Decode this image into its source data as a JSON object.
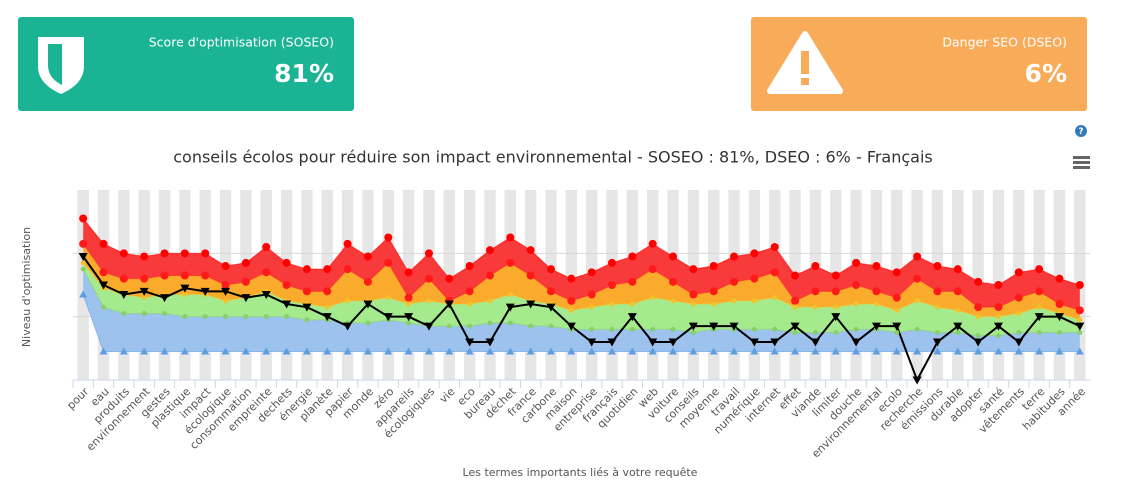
{
  "cards": [
    {
      "title": "Score d'optimisation (SOSEO)",
      "value": "81%"
    },
    {
      "title": "Danger SEO (DSEO)",
      "value": "6%"
    }
  ],
  "chart_data": {
    "type": "area",
    "title": "conseils écolos pour réduire son impact environnemental - SOSEO : 81%, DSEO : 6% - Français",
    "y_label": "Niveau d'optimisation",
    "x_label": "Les termes importants liés à votre requête",
    "categories": [
      "pour",
      "eau",
      "produits",
      "environnement",
      "gestes",
      "plastique",
      "impact",
      "écologique",
      "consommation",
      "empreinte",
      "dechets",
      "énergie",
      "planète",
      "papier",
      "monde",
      "zéro",
      "appareils",
      "écologiques",
      "vie",
      "eco",
      "bureau",
      "déchet",
      "france",
      "carbone",
      "maison",
      "entreprise",
      "français",
      "quotidien",
      "web",
      "voiture",
      "conseils",
      "moyenne",
      "travail",
      "numérique",
      "internet",
      "effet",
      "viande",
      "limiter",
      "douche",
      "environnemental",
      "ecolo",
      "recherche",
      "émissions",
      "durable",
      "adopter",
      "santé",
      "vêtements",
      "terre",
      "habitudes",
      "année"
    ],
    "ylim": [
      0,
      60
    ],
    "yticks": [
      20,
      40
    ],
    "grid": true,
    "series": [
      {
        "color": "#ff0000",
        "fill": "#f83a3a",
        "marker": "circle",
        "values": [
          51,
          43,
          40,
          39,
          40,
          40,
          40,
          36,
          37,
          42,
          37,
          35,
          35,
          43,
          39,
          45,
          34,
          40,
          32,
          36,
          41,
          45,
          41,
          35,
          32,
          34,
          37,
          39,
          43,
          39,
          35,
          36,
          39,
          40,
          42,
          33,
          36,
          33,
          37,
          36,
          34,
          39,
          36,
          35,
          31,
          30,
          34,
          35,
          32,
          30
        ]
      },
      {
        "color": "#ff1a1a",
        "fill": "#fbab2c",
        "marker": "circle",
        "values": [
          43,
          34,
          32,
          32,
          33,
          33,
          33,
          30,
          31,
          34,
          30,
          28,
          28,
          35,
          31,
          37,
          26,
          32,
          25,
          28,
          33,
          37,
          33,
          28,
          25,
          27,
          30,
          31,
          35,
          31,
          27,
          28,
          31,
          32,
          34,
          25,
          28,
          28,
          30,
          28,
          26,
          32,
          28,
          28,
          23,
          23,
          26,
          28,
          24,
          22
        ]
      },
      {
        "color": "#f4c22b",
        "fill": "#a5eb8e",
        "marker": "dot",
        "values": [
          37,
          29,
          27,
          26,
          27,
          27,
          27,
          25,
          26,
          28,
          25,
          24,
          23,
          25,
          25,
          26,
          24,
          25,
          24,
          24,
          25,
          27,
          25,
          24,
          22,
          23,
          24,
          24,
          26,
          25,
          24,
          24,
          25,
          25,
          26,
          23,
          23,
          23,
          24,
          24,
          22,
          25,
          23,
          22,
          20,
          20,
          21,
          23,
          21,
          19
        ]
      },
      {
        "color": "#86cf6a",
        "fill": "#9dc2ee",
        "marker": "dot",
        "values": [
          35,
          23,
          21,
          21,
          21,
          20,
          20,
          20,
          20,
          20,
          20,
          19,
          19,
          18,
          18,
          19,
          18,
          17,
          17,
          17,
          18,
          18,
          17,
          17,
          16,
          16,
          16,
          16,
          16,
          16,
          15,
          16,
          16,
          16,
          16,
          15,
          15,
          15,
          16,
          16,
          15,
          16,
          15,
          15,
          14,
          14,
          15,
          15,
          15,
          15
        ]
      },
      {
        "color": "#5b9fe3",
        "marker": "triangle",
        "values": [
          27,
          9,
          9,
          9,
          9,
          9,
          9,
          9,
          9,
          9,
          9,
          9,
          9,
          9,
          9,
          9,
          9,
          9,
          9,
          9,
          9,
          9,
          9,
          9,
          9,
          9,
          9,
          9,
          9,
          9,
          9,
          9,
          9,
          9,
          9,
          9,
          9,
          9,
          9,
          9,
          9,
          9,
          9,
          9,
          9,
          9,
          9,
          9,
          9,
          9
        ]
      },
      {
        "color": "#000000",
        "marker": "triangle-down",
        "line": true,
        "values": [
          39,
          30,
          27,
          28,
          26,
          29,
          28,
          28,
          26,
          27,
          24,
          23,
          20,
          17,
          24,
          20,
          20,
          17,
          24,
          12,
          12,
          23,
          24,
          23,
          17,
          12,
          12,
          20,
          12,
          12,
          17,
          17,
          17,
          12,
          12,
          17,
          12,
          20,
          12,
          17,
          17,
          0,
          12,
          17,
          12,
          17,
          12,
          20,
          20,
          17
        ]
      }
    ]
  }
}
